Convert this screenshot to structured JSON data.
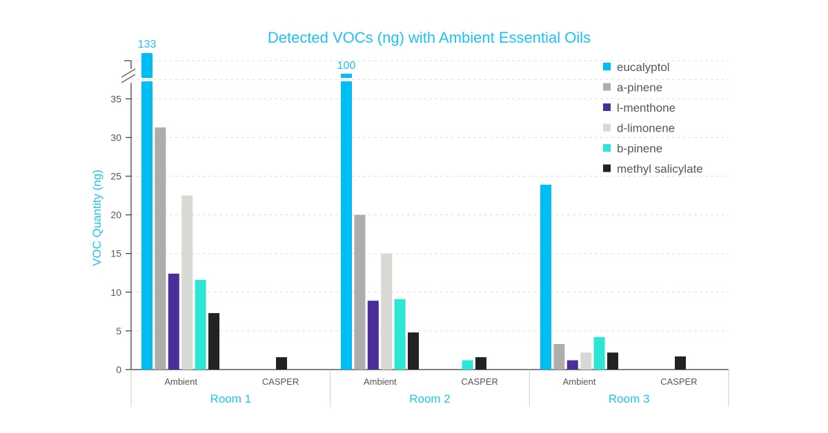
{
  "chart_data": {
    "type": "bar",
    "title": "Detected VOCs (ng) with Ambient Essential Oils",
    "ylabel": "VOC Quantity (ng)",
    "ylim": [
      0,
      40
    ],
    "yticks": [
      0,
      5,
      10,
      15,
      20,
      25,
      30,
      35
    ],
    "axis_break": true,
    "grid": "dashed horizontal",
    "legend_position": "top-right",
    "groups": [
      {
        "room": "Room 1",
        "conditions": [
          "Ambient",
          "CASPER"
        ]
      },
      {
        "room": "Room 2",
        "conditions": [
          "Ambient",
          "CASPER"
        ]
      },
      {
        "room": "Room 3",
        "conditions": [
          "Ambient",
          "CASPER"
        ]
      }
    ],
    "categories": [
      "Room 1 Ambient",
      "Room 1 CASPER",
      "Room 2 Ambient",
      "Room 2 CASPER",
      "Room 3 Ambient",
      "Room 3 CASPER"
    ],
    "series": [
      {
        "name": "eucalyptol",
        "color": "#00bdf4",
        "values": [
          133,
          0,
          100,
          0,
          23.9,
          0
        ]
      },
      {
        "name": "a-pinene",
        "color": "#adadad",
        "values": [
          31.3,
          0,
          20.0,
          0,
          3.3,
          0
        ]
      },
      {
        "name": "l-menthone",
        "color": "#4a2e9a",
        "values": [
          12.4,
          0,
          8.9,
          0,
          1.2,
          0
        ]
      },
      {
        "name": "d-limonene",
        "color": "#d8d8d4",
        "values": [
          22.5,
          0,
          15.0,
          0,
          2.2,
          0
        ]
      },
      {
        "name": "b-pinene",
        "color": "#2ee6d6",
        "values": [
          11.6,
          0,
          9.1,
          1.2,
          4.2,
          0
        ]
      },
      {
        "name": "methyl salicylate",
        "color": "#222222",
        "values": [
          7.3,
          1.6,
          4.8,
          1.6,
          2.2,
          1.7
        ]
      }
    ],
    "data_labels": [
      {
        "category": "Room 1 Ambient",
        "series": "eucalyptol",
        "text": "133"
      },
      {
        "category": "Room 2 Ambient",
        "series": "eucalyptol",
        "text": "100"
      }
    ]
  }
}
